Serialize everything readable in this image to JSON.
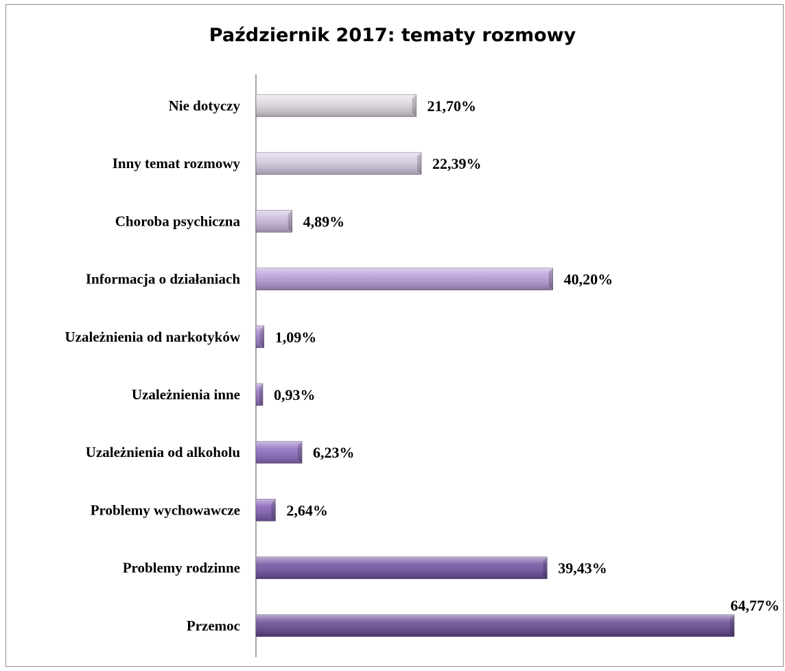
{
  "chart_data": {
    "type": "bar",
    "orientation": "horizontal",
    "title": "Październik 2017: tematy rozmowy",
    "categories": [
      "Nie dotyczy",
      "Inny temat rozmowy",
      "Choroba psychiczna",
      "Informacja o działaniach",
      "Uzależnienia od narkotyków",
      "Uzależnienia inne",
      "Uzależnienia od alkoholu",
      "Problemy wychowawcze",
      "Problemy rodzinne",
      "Przemoc"
    ],
    "values": [
      21.7,
      22.39,
      4.89,
      40.2,
      1.09,
      0.93,
      6.23,
      2.64,
      39.43,
      64.77
    ],
    "value_labels": [
      "21,70%",
      "22,39%",
      "4,89%",
      "40,20%",
      "1,09%",
      "0,93%",
      "6,23%",
      "2,64%",
      "39,43%",
      "64,77%"
    ],
    "bar_colors": [
      "#dcd6e0",
      "#d3c9e0",
      "#c7b7dc",
      "#b59ad7",
      "#9f7fcc",
      "#9272c2",
      "#8a68bd",
      "#7e5bb2",
      "#6e4d9f",
      "#62448f"
    ],
    "xlim": [
      0,
      65
    ],
    "grid": false,
    "legend": "none"
  }
}
